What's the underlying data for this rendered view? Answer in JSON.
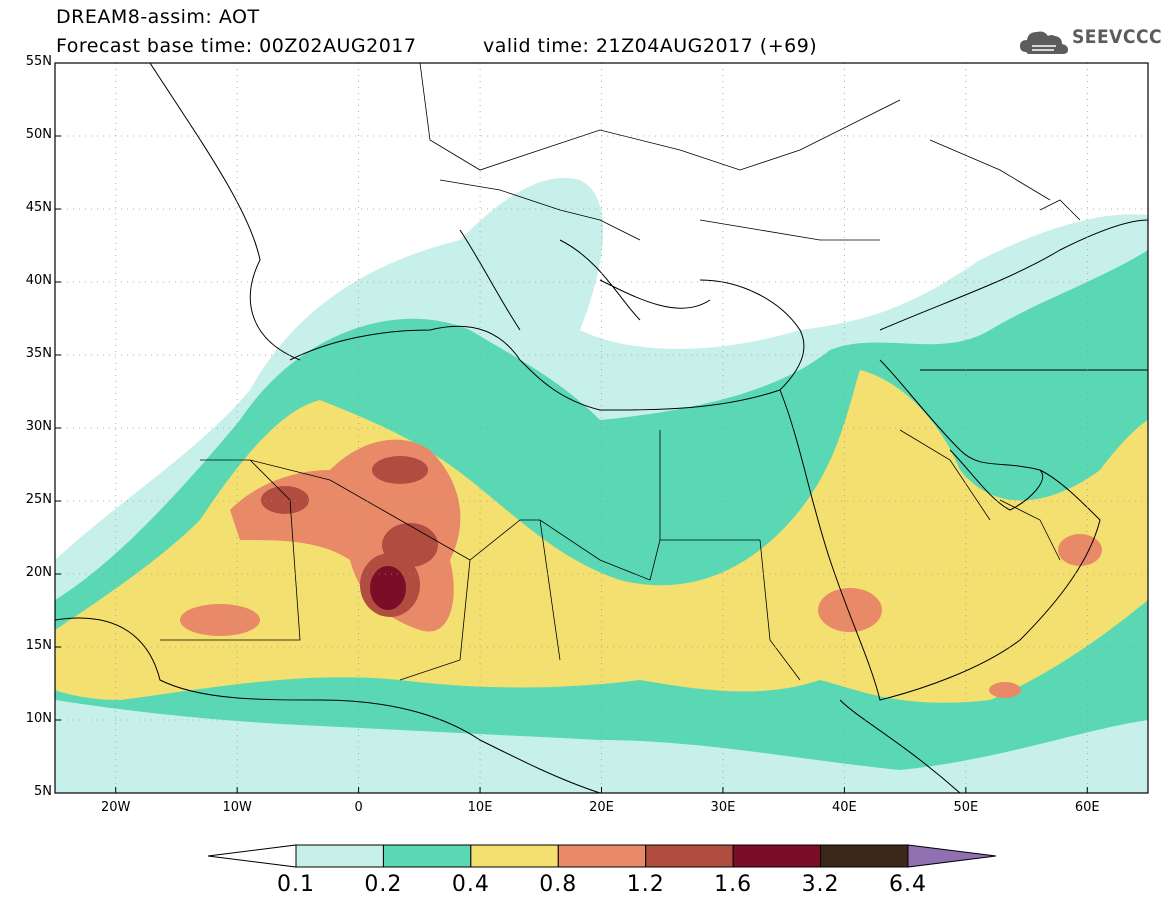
{
  "header": {
    "line1": "DREAM8-assim: AOT",
    "line2_base": "Forecast base time: 00Z02AUG2017",
    "line2_valid": "valid time: 21Z04AUG2017 (+69)"
  },
  "logo": {
    "icon": "cloud-icon",
    "text": "SEEVCCC"
  },
  "map": {
    "lon_range": [
      -25,
      65
    ],
    "lat_range": [
      5,
      55
    ],
    "grid": "dotted",
    "lat_ticks": [
      "55N",
      "50N",
      "45N",
      "40N",
      "35N",
      "30N",
      "25N",
      "20N",
      "15N",
      "10N",
      "5N"
    ],
    "lon_ticks": [
      "20W",
      "10W",
      "0",
      "10E",
      "20E",
      "30E",
      "40E",
      "50E",
      "60E"
    ]
  },
  "legend": {
    "labels": [
      "0.1",
      "0.2",
      "0.4",
      "0.8",
      "1.2",
      "1.6",
      "3.2",
      "6.4"
    ],
    "colors": [
      "#ffffff",
      "#c8f0ea",
      "#5ad8b4",
      "#f4e070",
      "#e88a68",
      "#b04c40",
      "#7a0e28",
      "#3c2818",
      "#9070b0"
    ]
  }
}
